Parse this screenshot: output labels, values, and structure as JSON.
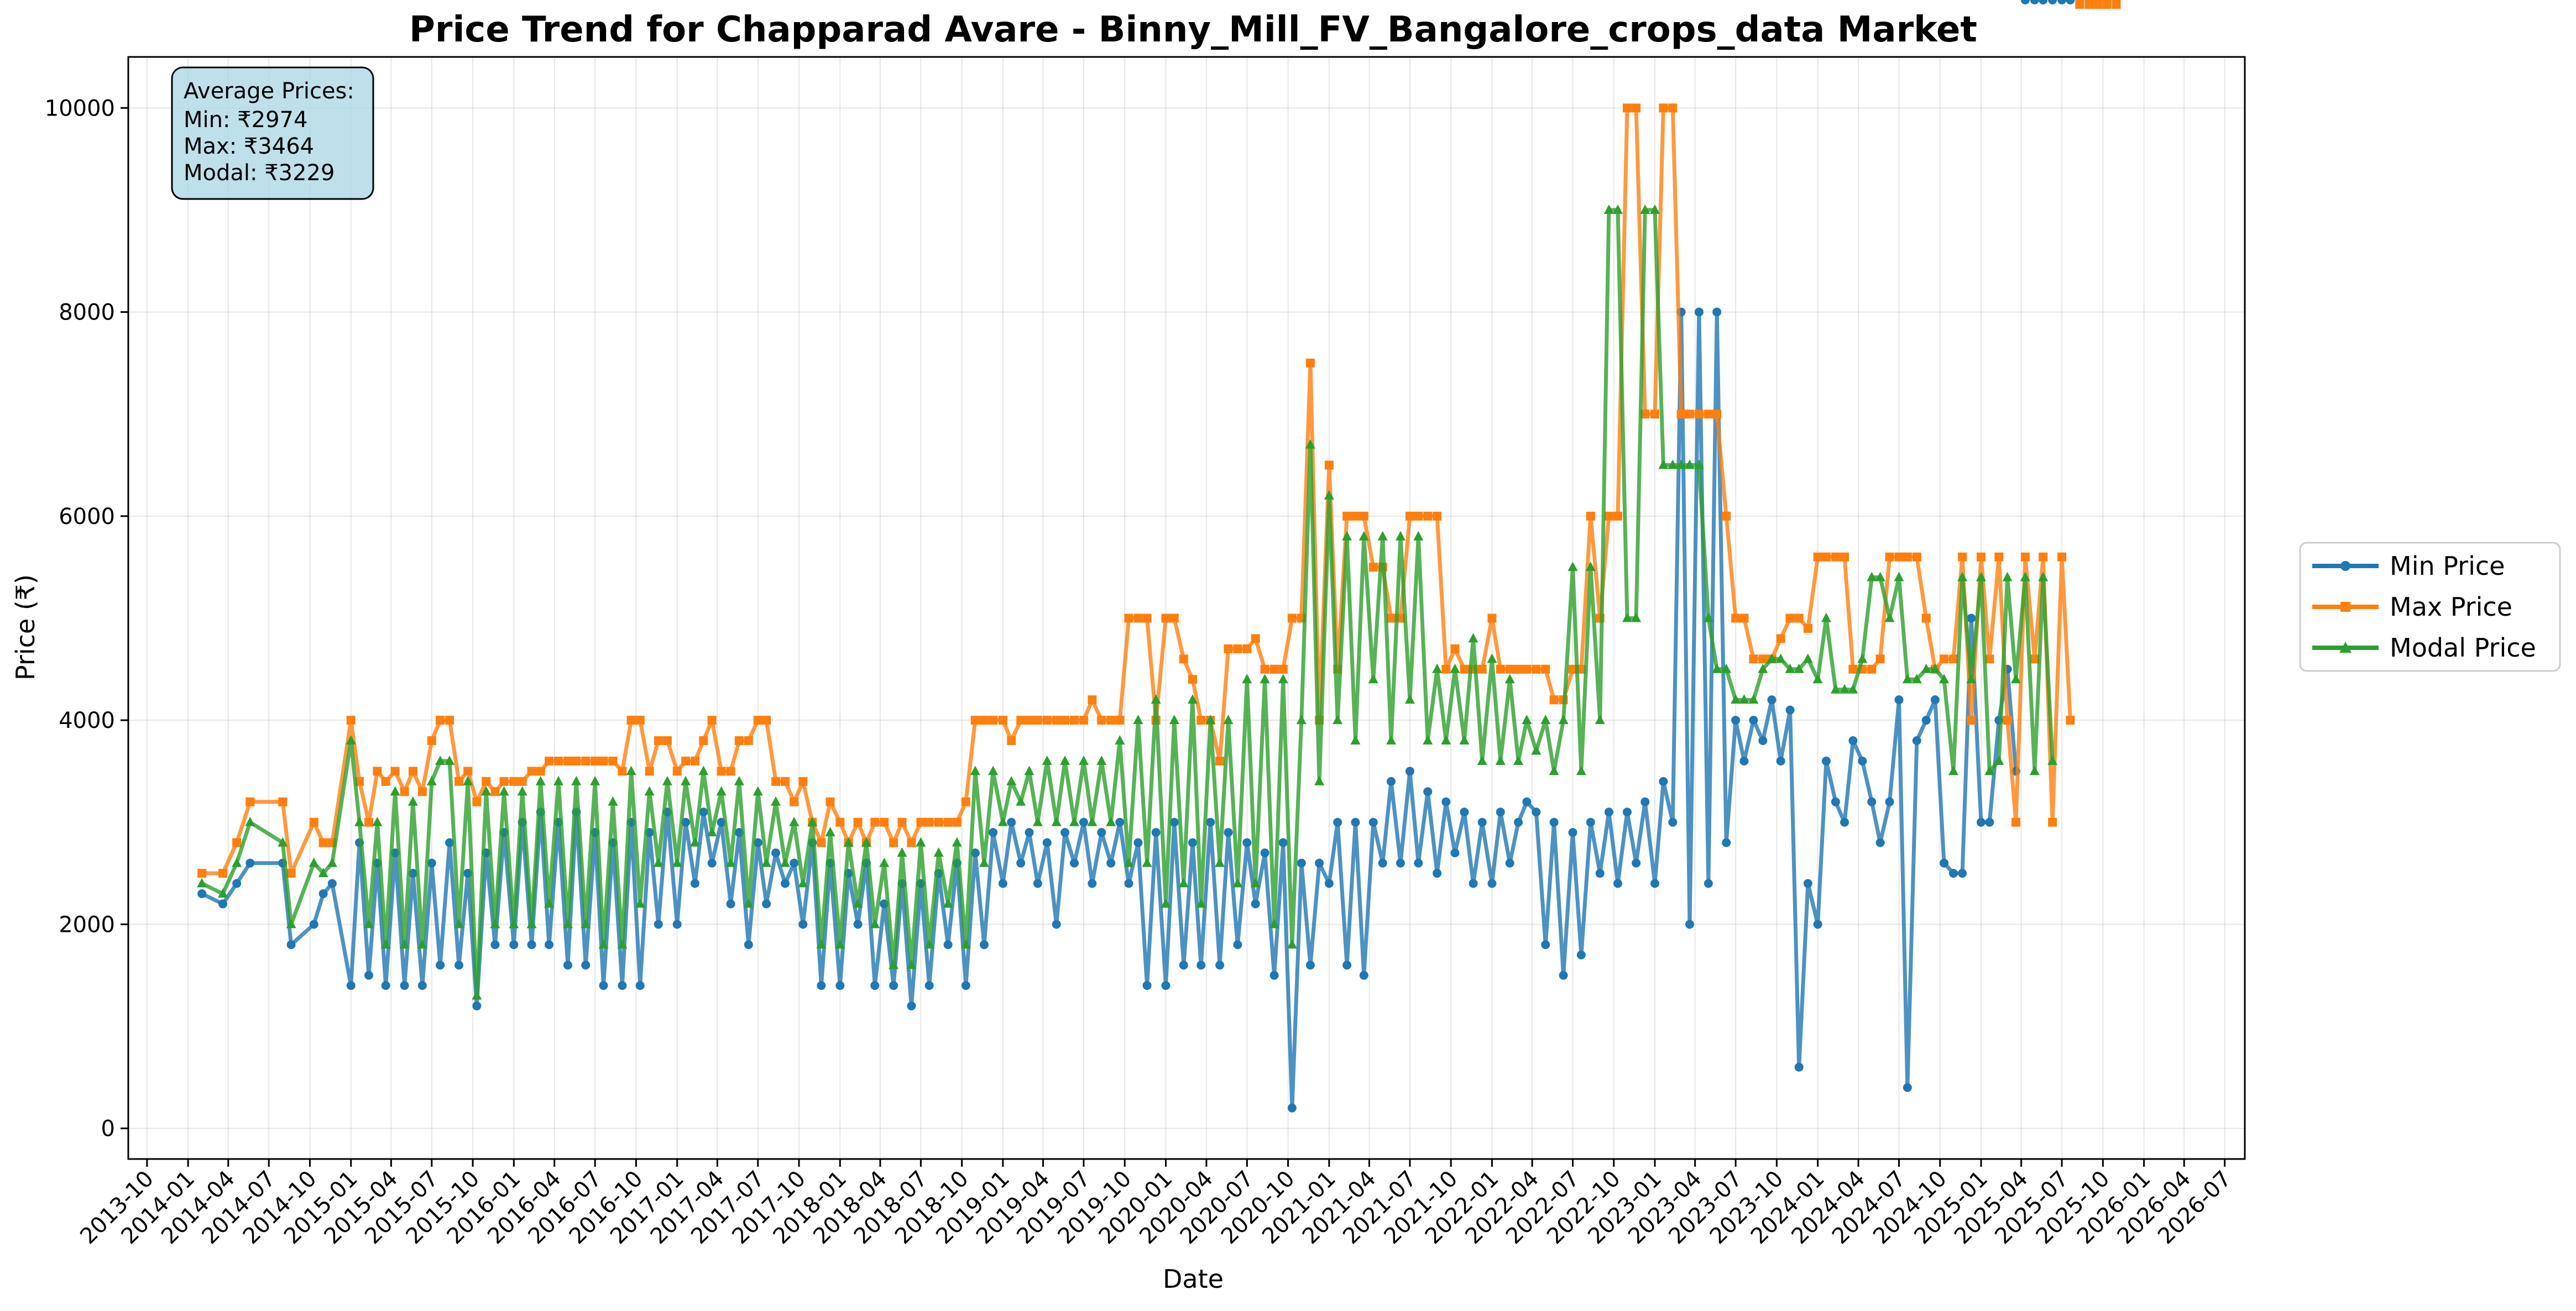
{
  "chart_data": {
    "type": "line",
    "title": "Price Trend for Chapparad Avare - Binny_Mill_FV_Bangalore_crops_data Market",
    "xlabel": "Date",
    "ylabel": "Price (₹)",
    "xlim": [
      "2013-08-20",
      "2026-08-15"
    ],
    "ylim": [
      -300,
      10500
    ],
    "grid": true,
    "legend_position": "center-right outside",
    "x_ticks": [
      "2013-10",
      "2014-01",
      "2014-04",
      "2014-07",
      "2014-10",
      "2015-01",
      "2015-04",
      "2015-07",
      "2015-10",
      "2016-01",
      "2016-04",
      "2016-07",
      "2016-10",
      "2017-01",
      "2017-04",
      "2017-07",
      "2017-10",
      "2018-01",
      "2018-04",
      "2018-07",
      "2018-10",
      "2019-01",
      "2019-04",
      "2019-07",
      "2019-10",
      "2020-01",
      "2020-04",
      "2020-07",
      "2020-10",
      "2021-01",
      "2021-04",
      "2021-07",
      "2021-10",
      "2022-01",
      "2022-04",
      "2022-07",
      "2022-10",
      "2023-01",
      "2023-04",
      "2023-07",
      "2023-10",
      "2024-01",
      "2024-04",
      "2024-07",
      "2024-10",
      "2025-01",
      "2025-04",
      "2025-07",
      "2025-10",
      "2026-01",
      "2026-04",
      "2026-07"
    ],
    "y_ticks": [
      0,
      2000,
      4000,
      6000,
      8000,
      10000
    ],
    "annotation": {
      "heading": "Average Prices:",
      "lines": [
        "Min: ₹2974",
        "Max: ₹3464",
        "Modal: ₹3229"
      ]
    },
    "series": [
      {
        "name": "Min Price",
        "color": "#1f77b4",
        "marker": "circle"
      },
      {
        "name": "Max Price",
        "color": "#ff7f0e",
        "marker": "square"
      },
      {
        "name": "Modal Price",
        "color": "#2ca02c",
        "marker": "triangle"
      }
    ],
    "x": [
      "2014-02-01",
      "2014-03-20",
      "2014-04-20",
      "2014-05-20",
      "2014-08-01",
      "2014-08-20",
      "2014-10-10",
      "2014-10-31",
      "2014-11-20",
      "2015-01-01",
      "2015-01-20",
      "2015-02-10",
      "2015-03-01",
      "2015-03-20",
      "2015-04-10",
      "2015-05-01",
      "2015-05-20",
      "2015-06-10",
      "2015-07-01",
      "2015-07-20",
      "2015-08-10",
      "2015-08-31",
      "2015-09-20",
      "2015-10-10",
      "2015-10-31",
      "2015-11-20",
      "2015-12-10",
      "2016-01-01",
      "2016-01-20",
      "2016-02-10",
      "2016-03-01",
      "2016-03-20",
      "2016-04-10",
      "2016-05-01",
      "2016-05-20",
      "2016-06-10",
      "2016-07-01",
      "2016-07-20",
      "2016-08-10",
      "2016-08-31",
      "2016-09-20",
      "2016-10-10",
      "2016-10-31",
      "2016-11-20",
      "2016-12-10",
      "2017-01-01",
      "2017-01-20",
      "2017-02-10",
      "2017-03-01",
      "2017-03-20",
      "2017-04-10",
      "2017-05-01",
      "2017-05-20",
      "2017-06-10",
      "2017-07-01",
      "2017-07-20",
      "2017-08-10",
      "2017-08-31",
      "2017-09-20",
      "2017-10-10",
      "2017-10-31",
      "2017-11-20",
      "2017-12-10",
      "2018-01-01",
      "2018-01-20",
      "2018-02-10",
      "2018-03-01",
      "2018-03-20",
      "2018-04-10",
      "2018-05-01",
      "2018-05-20",
      "2018-06-10",
      "2018-07-01",
      "2018-07-20",
      "2018-08-10",
      "2018-08-31",
      "2018-09-20",
      "2018-10-10",
      "2018-10-31",
      "2018-11-20",
      "2018-12-10",
      "2019-01-01",
      "2019-01-20",
      "2019-02-10",
      "2019-03-01",
      "2019-03-20",
      "2019-04-10",
      "2019-05-01",
      "2019-05-20",
      "2019-06-10",
      "2019-07-01",
      "2019-07-20",
      "2019-08-10",
      "2019-08-31",
      "2019-09-20",
      "2019-10-10",
      "2019-10-31",
      "2019-11-20",
      "2019-12-10",
      "2020-01-01",
      "2020-01-20",
      "2020-02-10",
      "2020-03-01",
      "2020-03-20",
      "2020-04-10",
      "2020-05-01",
      "2020-05-20",
      "2020-06-10",
      "2020-07-01",
      "2020-07-20",
      "2020-08-10",
      "2020-08-31",
      "2020-09-20",
      "2020-10-10",
      "2020-10-31",
      "2020-11-20",
      "2020-12-10",
      "2021-01-01",
      "2021-01-20",
      "2021-02-10",
      "2021-03-01",
      "2021-03-20",
      "2021-04-10",
      "2021-05-01",
      "2021-05-20",
      "2021-06-10",
      "2021-07-01",
      "2021-07-20",
      "2021-08-10",
      "2021-08-31",
      "2021-09-20",
      "2021-10-10",
      "2021-10-31",
      "2021-11-20",
      "2021-12-10",
      "2022-01-01",
      "2022-01-20",
      "2022-02-10",
      "2022-03-01",
      "2022-03-20",
      "2022-04-10",
      "2022-05-01",
      "2022-05-20",
      "2022-06-10",
      "2022-07-01",
      "2022-07-20",
      "2022-08-10",
      "2022-08-31",
      "2022-09-20",
      "2022-10-10",
      "2022-10-31",
      "2022-11-20",
      "2022-12-10",
      "2023-01-01",
      "2023-01-20",
      "2023-02-10",
      "2023-03-01",
      "2023-03-20",
      "2023-04-10",
      "2023-05-01",
      "2023-05-20",
      "2023-06-10",
      "2023-07-01",
      "2023-07-20",
      "2023-08-10",
      "2023-08-31",
      "2023-09-20",
      "2023-10-10",
      "2023-10-31",
      "2023-11-20",
      "2023-12-10",
      "2024-01-01",
      "2024-01-20",
      "2024-02-10",
      "2024-03-01",
      "2024-03-20",
      "2024-04-10",
      "2024-05-01",
      "2024-05-20",
      "2024-06-10",
      "2024-07-01",
      "2024-07-20",
      "2024-08-10",
      "2024-08-31",
      "2024-09-20",
      "2024-10-10",
      "2024-10-31",
      "2024-11-20",
      "2024-12-10",
      "2025-01-01",
      "2025-01-20",
      "2025-02-10",
      "2025-03-01",
      "2025-03-20",
      "2025-04-10",
      "2025-05-01",
      "2025-05-20",
      "2025-06-10",
      "2025-07-01",
      "2025-07-20",
      "2025-08-10",
      "2025-08-31",
      "2025-09-20",
      "2025-10-10",
      "2025-10-31"
    ],
    "min_price": [
      2300,
      2200,
      2400,
      2600,
      2600,
      1800,
      2000,
      2300,
      2400,
      1400,
      2800,
      1500,
      2600,
      1400,
      2700,
      1400,
      2500,
      1400,
      2600,
      1600,
      2800,
      1600,
      2500,
      1200,
      2700,
      1800,
      2900,
      1800,
      3000,
      1800,
      3100,
      1800,
      3000,
      1600,
      3100,
      1600,
      2900,
      1400,
      2800,
      1400,
      3000,
      1400,
      2900,
      2000,
      3100,
      2000,
      3000,
      2400,
      3100,
      2600,
      3000,
      2200,
      2900,
      1800,
      2800,
      2200,
      2700,
      2400,
      2600,
      2000,
      2800,
      1400,
      2600,
      1400,
      2500,
      2000,
      2600,
      1400,
      2200,
      1400,
      2400,
      1200,
      2400,
      1400,
      2500,
      1800,
      2600,
      1400,
      2700,
      1800,
      2900,
      2400,
      3000,
      2600,
      2900,
      2400,
      2800,
      2000,
      2900,
      2600,
      3000,
      2400,
      2900,
      2600,
      3000,
      2400,
      2800,
      1400,
      2900,
      1400,
      3000,
      1600,
      2800,
      1600,
      3000,
      1600,
      2900,
      1800,
      2800,
      2200,
      2700,
      1500,
      2800,
      200,
      2600,
      1600,
      2600,
      2400,
      3000,
      1600,
      3000,
      1500,
      3000,
      2600,
      3400,
      2600,
      3500,
      2600,
      3300,
      2500,
      3200,
      2700,
      3100,
      2400,
      3000,
      2400,
      3100,
      2600,
      3000,
      3200,
      3100,
      1800,
      3000,
      1500,
      2900,
      1700,
      3000,
      2500,
      3100,
      2400,
      3100,
      2600,
      3200,
      2400,
      3400,
      3000,
      8000,
      2000,
      8000,
      2400,
      8000,
      2800,
      4000,
      3600,
      4000,
      3800,
      4200,
      3600,
      4100,
      600,
      2400,
      2000,
      3600,
      3200,
      3000,
      3800,
      3600,
      3200,
      2800,
      3200,
      4200,
      400,
      3800,
      4000,
      4200,
      2600,
      2500,
      2500,
      5000,
      3000,
      3000,
      4000,
      4500,
      3500
    ],
    "max_price": [
      2500,
      2500,
      2800,
      3200,
      3200,
      2500,
      3000,
      2800,
      2800,
      4000,
      3400,
      3000,
      3500,
      3400,
      3500,
      3300,
      3500,
      3300,
      3800,
      4000,
      4000,
      3400,
      3500,
      3200,
      3400,
      3300,
      3400,
      3400,
      3400,
      3500,
      3500,
      3600,
      3600,
      3600,
      3600,
      3600,
      3600,
      3600,
      3600,
      3500,
      4000,
      4000,
      3500,
      3800,
      3800,
      3500,
      3600,
      3600,
      3800,
      4000,
      3500,
      3500,
      3800,
      3800,
      4000,
      4000,
      3400,
      3400,
      3200,
      3400,
      3000,
      2800,
      3200,
      3000,
      2800,
      3000,
      2800,
      3000,
      3000,
      2800,
      3000,
      2800,
      3000,
      3000,
      3000,
      3000,
      3000,
      3200,
      4000,
      4000,
      4000,
      4000,
      3800,
      4000,
      4000,
      4000,
      4000,
      4000,
      4000,
      4000,
      4000,
      4200,
      4000,
      4000,
      4000,
      5000,
      5000,
      5000,
      4000,
      5000,
      5000,
      4600,
      4400,
      4000,
      4000,
      3600,
      4700,
      4700,
      4700,
      4800,
      4500,
      4500,
      4500,
      5000,
      5000,
      7500,
      4000,
      6500,
      4500,
      6000,
      6000,
      6000,
      5500,
      5500,
      5000,
      5000,
      6000,
      6000,
      6000,
      6000,
      4500,
      4700,
      4500,
      4500,
      4500,
      5000,
      4500,
      4500,
      4500,
      4500,
      4500,
      4500,
      4200,
      4200,
      4500,
      4500,
      6000,
      5000,
      6000,
      6000,
      10000,
      10000,
      7000,
      7000,
      10000,
      10000,
      7000,
      7000,
      7000,
      7000,
      7000,
      6000,
      5000,
      5000,
      4600,
      4600,
      4600,
      4800,
      5000,
      5000,
      4900,
      5600,
      5600,
      5600,
      5600,
      4500,
      4500,
      4500,
      4600,
      5600,
      5600,
      5600,
      5600,
      5000,
      4500,
      4600,
      4600,
      5600,
      4000,
      5600,
      4600,
      5600,
      4000,
      3000,
      5600,
      4600,
      5600,
      3000,
      5600,
      4000
    ],
    "modal_price": [
      2400,
      2300,
      2600,
      3000,
      2800,
      2000,
      2600,
      2500,
      2600,
      3800,
      3000,
      2000,
      3000,
      1800,
      3300,
      1800,
      3200,
      1800,
      3400,
      3600,
      3600,
      2000,
      3400,
      1300,
      3300,
      2000,
      3300,
      2000,
      3300,
      2000,
      3400,
      2200,
      3400,
      2000,
      3400,
      2000,
      3400,
      1800,
      3200,
      1800,
      3500,
      2200,
      3300,
      2600,
      3400,
      2600,
      3400,
      2800,
      3500,
      2900,
      3300,
      2600,
      3400,
      2200,
      3300,
      2600,
      3200,
      2600,
      3000,
      2400,
      3000,
      1800,
      2900,
      1800,
      2800,
      2200,
      2800,
      2000,
      2600,
      1600,
      2700,
      1600,
      2800,
      1800,
      2700,
      2200,
      2800,
      1800,
      3500,
      2600,
      3500,
      3000,
      3400,
      3200,
      3500,
      3000,
      3600,
      3000,
      3600,
      3000,
      3600,
      3000,
      3600,
      3000,
      3800,
      2600,
      4000,
      2600,
      4200,
      2200,
      4000,
      2400,
      4200,
      2200,
      4000,
      2600,
      4000,
      2400,
      4400,
      2400,
      4400,
      2000,
      4400,
      1800,
      4000,
      6700,
      3400,
      6200,
      4000,
      5800,
      3800,
      5800,
      4400,
      5800,
      3800,
      5800,
      4200,
      5800,
      3800,
      4500,
      3800,
      4500,
      3800,
      4800,
      3600,
      4600,
      3600,
      4400,
      3600,
      4000,
      3700,
      4000,
      3500,
      4000,
      5500,
      3500,
      5500,
      4000,
      9000,
      9000,
      5000,
      5000,
      9000,
      9000,
      6500,
      6500,
      6500,
      6500,
      6500,
      5000,
      4500,
      4500,
      4200,
      4200,
      4200,
      4500,
      4600,
      4600,
      4500,
      4500,
      4600,
      4400,
      5000,
      4300,
      4300,
      4300,
      4600,
      5400,
      5400,
      5000,
      5400,
      4400,
      4400,
      4500,
      4500,
      4400,
      3500,
      5400,
      4400,
      5400,
      3500,
      3600,
      5400,
      4400,
      5400,
      3500,
      5400,
      3600
    ]
  }
}
